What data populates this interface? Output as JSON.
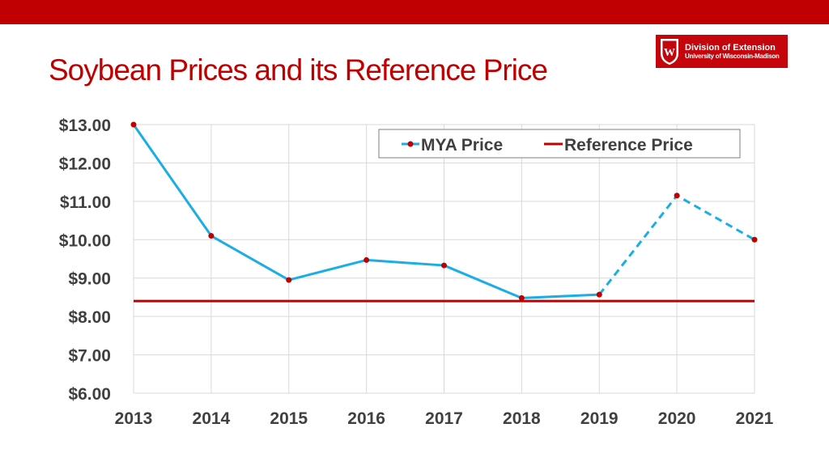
{
  "slide": {
    "title": "Soybean Prices and its Reference Price",
    "accent_color": "#c00000"
  },
  "logo": {
    "line1": "Division of Extension",
    "line2": "University of Wisconsin-Madison",
    "crest_letter": "W",
    "background": "#c5050c",
    "icon": "uw-crest-icon"
  },
  "chart_data": {
    "type": "line",
    "title": "",
    "xlabel": "",
    "ylabel": "",
    "categories": [
      "2013",
      "2014",
      "2015",
      "2016",
      "2017",
      "2018",
      "2019",
      "2020",
      "2021"
    ],
    "ylim": [
      6,
      13
    ],
    "yticks": [
      6,
      7,
      8,
      9,
      10,
      11,
      12,
      13
    ],
    "ytick_labels": [
      "$6.00",
      "$7.00",
      "$8.00",
      "$9.00",
      "$10.00",
      "$11.00",
      "$12.00",
      "$13.00"
    ],
    "grid": true,
    "legend_position": "top-right",
    "series": [
      {
        "name": "MYA Price",
        "values": [
          13.0,
          10.1,
          8.95,
          9.47,
          9.33,
          8.48,
          8.57,
          11.15,
          10.0
        ],
        "color": "#1aaee5",
        "marker_color": "#c00000",
        "dashed_from_index": 6
      },
      {
        "name": "Reference Price",
        "values": [
          8.4,
          8.4,
          8.4,
          8.4,
          8.4,
          8.4,
          8.4,
          8.4,
          8.4
        ],
        "color": "#c00000"
      }
    ]
  }
}
